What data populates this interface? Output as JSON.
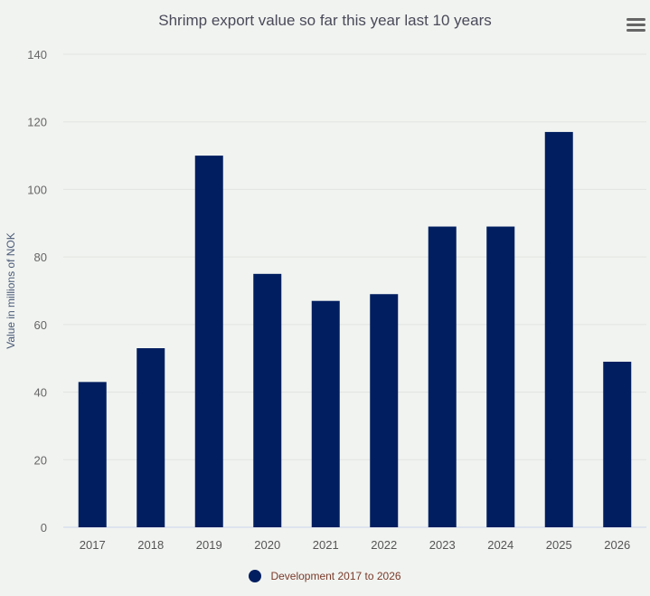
{
  "chart_data": {
    "type": "bar",
    "title": "Shrimp export value so far this year last 10 years",
    "xlabel": "",
    "ylabel": "Value in millions of NOK",
    "categories": [
      "2017",
      "2018",
      "2019",
      "2020",
      "2021",
      "2022",
      "2023",
      "2024",
      "2025",
      "2026"
    ],
    "series": [
      {
        "name": "Development 2017 to 2026",
        "values": [
          43,
          53,
          110,
          75,
          67,
          69,
          89,
          89,
          117,
          49
        ],
        "color": "#001e60"
      }
    ],
    "ylim": [
      0,
      140
    ],
    "yticks": [
      "0",
      "20",
      "40",
      "60",
      "80",
      "100",
      "120",
      "140"
    ],
    "grid": true,
    "legend": "bottom-center"
  },
  "menu_icon": "hamburger-menu-icon"
}
